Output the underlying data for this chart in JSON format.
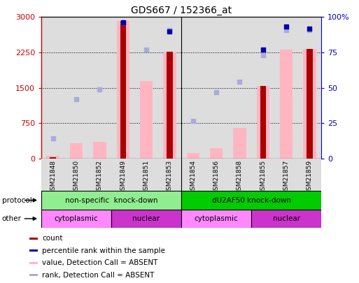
{
  "title": "GDS667 / 152366_at",
  "samples": [
    "GSM21848",
    "GSM21850",
    "GSM21852",
    "GSM21849",
    "GSM21851",
    "GSM21853",
    "GSM21854",
    "GSM21856",
    "GSM21858",
    "GSM21855",
    "GSM21857",
    "GSM21859"
  ],
  "count_values": [
    30,
    0,
    0,
    2920,
    0,
    2260,
    0,
    0,
    0,
    1540,
    0,
    2320
  ],
  "value_absent": [
    60,
    330,
    360,
    2920,
    1640,
    2260,
    120,
    220,
    650,
    1540,
    2310,
    2320
  ],
  "rank_absent": [
    420,
    1260,
    1470,
    2890,
    2310,
    2720,
    800,
    1400,
    1620,
    2190,
    2720,
    2720
  ],
  "pct_rank": [
    null,
    null,
    null,
    96,
    null,
    90,
    null,
    null,
    null,
    77,
    93,
    92
  ],
  "ylim_left": [
    0,
    3000
  ],
  "ylim_right": [
    0,
    100
  ],
  "yticks_left": [
    0,
    750,
    1500,
    2250,
    3000
  ],
  "yticks_right": [
    0,
    25,
    50,
    75,
    100
  ],
  "protocol_groups": [
    {
      "label": "non-specific  knock-down",
      "start": 0,
      "end": 6,
      "color": "#90EE90"
    },
    {
      "label": "dU2AF50 knock-down",
      "start": 6,
      "end": 12,
      "color": "#00CC00"
    }
  ],
  "other_groups": [
    {
      "label": "cytoplasmic",
      "start": 0,
      "end": 3,
      "color": "#FF88FF"
    },
    {
      "label": "nuclear",
      "start": 3,
      "end": 6,
      "color": "#CC33CC"
    },
    {
      "label": "cytoplasmic",
      "start": 6,
      "end": 9,
      "color": "#FF88FF"
    },
    {
      "label": "nuclear",
      "start": 9,
      "end": 12,
      "color": "#CC33CC"
    }
  ],
  "count_color": "#AA0000",
  "value_absent_color": "#FFB6C1",
  "rank_absent_color": "#AAAADD",
  "pct_rank_color": "#0000AA",
  "left_axis_color": "#CC0000",
  "right_axis_color": "#0000CC",
  "col_bg_color": "#DDDDDD",
  "legend_labels": [
    "count",
    "percentile rank within the sample",
    "value, Detection Call = ABSENT",
    "rank, Detection Call = ABSENT"
  ],
  "legend_colors": [
    "#AA0000",
    "#0000AA",
    "#FFB6C1",
    "#AAAADD"
  ]
}
